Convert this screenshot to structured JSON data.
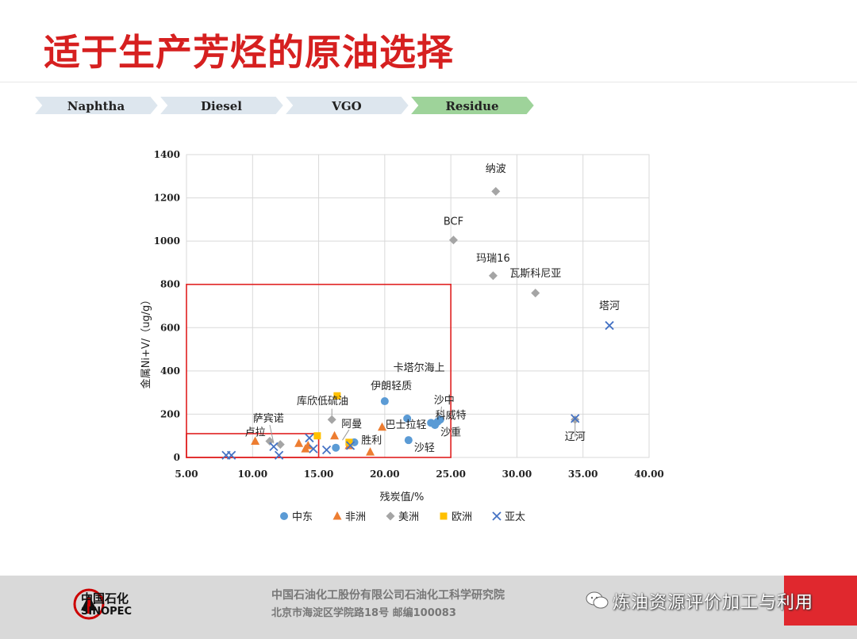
{
  "slide": {
    "title": "适于生产芳烃的原油选择",
    "process_steps": [
      {
        "label": "Naphtha"
      },
      {
        "label": "Diesel"
      },
      {
        "label": "VGO"
      },
      {
        "label": "Residue",
        "highlight": true
      }
    ]
  },
  "colors": {
    "title": "#d62020",
    "step_fill": "#dde6ee",
    "step_highlight_fill": "#9ed39a",
    "box_red": "#e02020",
    "middle_east": "#5b9bd5",
    "africa": "#ed7d31",
    "americas": "#a5a5a5",
    "europe": "#ffc000",
    "asia_pacific": "#4472c4"
  },
  "chart_data": {
    "type": "scatter",
    "xlabel": "残炭值/%",
    "ylabel": "金属Ni+V/（ug/g）",
    "xlim": [
      5,
      40
    ],
    "ylim": [
      0,
      1400
    ],
    "xticks": [
      "5.00",
      "10.00",
      "15.00",
      "20.00",
      "25.00",
      "30.00",
      "35.00",
      "40.00"
    ],
    "yticks": [
      "0",
      "200",
      "400",
      "600",
      "800",
      "1000",
      "1200",
      "1400"
    ],
    "grid": true,
    "legend_position": "bottom",
    "regions": [
      {
        "x0": 5,
        "x1": 25,
        "y0": 0,
        "y1": 800
      },
      {
        "x0": 5,
        "x1": 15,
        "y0": 0,
        "y1": 110
      }
    ],
    "series": [
      {
        "name": "中东",
        "marker": "circle",
        "color": "#5b9bd5",
        "points": [
          [
            16.3,
            45
          ],
          [
            17.7,
            70
          ],
          [
            20.0,
            260
          ],
          [
            21.7,
            180
          ],
          [
            21.8,
            80
          ],
          [
            23.5,
            160
          ],
          [
            23.8,
            150
          ],
          [
            24.0,
            165
          ],
          [
            24.2,
            175
          ]
        ]
      },
      {
        "name": "非洲",
        "marker": "triangle",
        "color": "#ed7d31",
        "points": [
          [
            10.2,
            75
          ],
          [
            13.5,
            65
          ],
          [
            14.0,
            40
          ],
          [
            14.2,
            55
          ],
          [
            16.2,
            100
          ],
          [
            17.3,
            55
          ],
          [
            18.9,
            25
          ],
          [
            19.8,
            140
          ]
        ]
      },
      {
        "name": "美洲",
        "marker": "diamond",
        "color": "#a5a5a5",
        "points": [
          [
            11.3,
            75
          ],
          [
            12.1,
            60
          ],
          [
            16.0,
            175
          ],
          [
            25.2,
            1005
          ],
          [
            28.2,
            840
          ],
          [
            28.4,
            1230
          ],
          [
            31.4,
            760
          ],
          [
            34.4,
            175
          ]
        ]
      },
      {
        "name": "欧洲",
        "marker": "square",
        "color": "#ffc000",
        "points": [
          [
            14.9,
            100
          ],
          [
            16.4,
            285
          ],
          [
            17.3,
            70
          ]
        ]
      },
      {
        "name": "亚太",
        "marker": "x",
        "color": "#4472c4",
        "points": [
          [
            8.0,
            10
          ],
          [
            8.4,
            10
          ],
          [
            11.6,
            50
          ],
          [
            12.0,
            10
          ],
          [
            14.3,
            90
          ],
          [
            14.6,
            40
          ],
          [
            15.6,
            35
          ],
          [
            17.4,
            55
          ],
          [
            34.4,
            180
          ],
          [
            37.0,
            610
          ]
        ]
      }
    ],
    "annotations": [
      {
        "text": "纳波",
        "x": 28.4,
        "y": 1320
      },
      {
        "text": "BCF",
        "x": 25.2,
        "y": 1075
      },
      {
        "text": "玛瑞16",
        "x": 28.2,
        "y": 905
      },
      {
        "text": "瓦斯科尼亚",
        "x": 31.4,
        "y": 835
      },
      {
        "text": "塔河",
        "x": 37.0,
        "y": 685
      },
      {
        "text": "卡塔尔海上",
        "x": 22.6,
        "y": 400
      },
      {
        "text": "伊朗轻质",
        "x": 20.5,
        "y": 315
      },
      {
        "text": "沙中",
        "x": 24.5,
        "y": 250
      },
      {
        "text": "科威特",
        "x": 25.0,
        "y": 180
      },
      {
        "text": "沙重",
        "x": 25.0,
        "y": 100
      },
      {
        "text": "巴士拉轻",
        "x": 21.6,
        "y": 135
      },
      {
        "text": "沙轻",
        "x": 23.0,
        "y": 30
      },
      {
        "text": "库欣低硫油",
        "x": 15.3,
        "y": 245
      },
      {
        "text": "阿曼",
        "x": 17.5,
        "y": 140
      },
      {
        "text": "胜利",
        "x": 19.0,
        "y": 65
      },
      {
        "text": "萨宾诺",
        "x": 11.2,
        "y": 165
      },
      {
        "text": "卢拉",
        "x": 10.2,
        "y": 100
      },
      {
        "text": "辽河",
        "x": 34.4,
        "y": 80
      }
    ]
  },
  "footer": {
    "logo_cn": "中国石化",
    "logo_en": "SINOPEC",
    "address_line1": "中国石油化工股份有限公司石油化工科学研究院",
    "address_line2": "北京市海淀区学院路18号   邮编100083",
    "watermark": "炼油资源评价加工与利用"
  }
}
